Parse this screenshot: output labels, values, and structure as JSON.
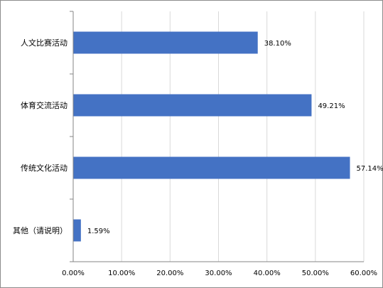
{
  "chart_data": {
    "type": "bar",
    "orientation": "horizontal",
    "title": "",
    "xlabel": "",
    "ylabel": "",
    "categories": [
      "人文比赛活动",
      "体育交流活动",
      "传统文化活动",
      "其他（请说明）"
    ],
    "values": [
      38.1,
      49.21,
      57.14,
      1.59
    ],
    "data_labels": [
      "38.10%",
      "49.21%",
      "57.14%",
      "1.59%"
    ],
    "xlim": [
      0,
      60
    ],
    "xticks": [
      0,
      10,
      20,
      30,
      40,
      50,
      60
    ],
    "xtick_labels": [
      "0.00%",
      "10.00%",
      "20.00%",
      "30.00%",
      "40.00%",
      "50.00%",
      "60.00%"
    ],
    "grid": "vertical",
    "legend": "none",
    "bar_color": "#4472C4",
    "grid_color": "#d9d9d9",
    "axis_color": "#868686"
  }
}
